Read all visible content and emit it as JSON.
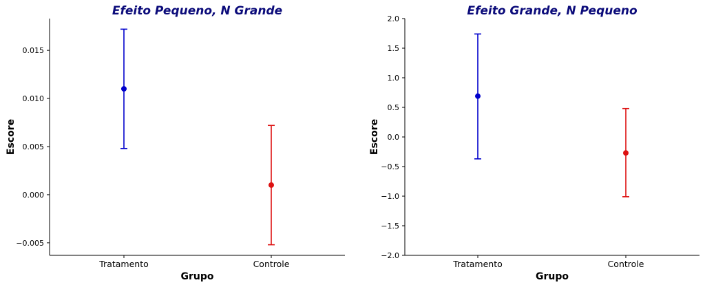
{
  "chart_data": [
    {
      "type": "errorbar",
      "title": "Efeito Pequeno, N Grande",
      "title_color": "#0b0b7a",
      "xlabel": "Grupo",
      "ylabel": "Escore",
      "categories": [
        "Tratamento",
        "Controle"
      ],
      "ylim": [
        -0.0063,
        0.0183
      ],
      "yticks": [
        -0.005,
        0.0,
        0.005,
        0.01,
        0.015
      ],
      "ytick_labels": [
        "−0.005",
        "0.000",
        "0.005",
        "0.010",
        "0.015"
      ],
      "grid": false,
      "series": [
        {
          "category": "Tratamento",
          "mean": 0.011,
          "lower": 0.0048,
          "upper": 0.0172,
          "color": "#0000cc"
        },
        {
          "category": "Controle",
          "mean": 0.001,
          "lower": -0.0052,
          "upper": 0.0072,
          "color": "#dd1111"
        }
      ]
    },
    {
      "type": "errorbar",
      "title": "Efeito Grande, N Pequeno",
      "title_color": "#0b0b7a",
      "xlabel": "Grupo",
      "ylabel": "Escore",
      "categories": [
        "Tratamento",
        "Controle"
      ],
      "ylim": [
        -2.0,
        2.0
      ],
      "yticks": [
        -2.0,
        -1.5,
        -1.0,
        -0.5,
        0.0,
        0.5,
        1.0,
        1.5,
        2.0
      ],
      "ytick_labels": [
        "−2.0",
        "−1.5",
        "−1.0",
        "−0.5",
        "0.0",
        "0.5",
        "1.0",
        "1.5",
        "2.0"
      ],
      "grid": false,
      "series": [
        {
          "category": "Tratamento",
          "mean": 0.69,
          "lower": -0.37,
          "upper": 1.74,
          "color": "#0000cc"
        },
        {
          "category": "Controle",
          "mean": -0.27,
          "lower": -1.01,
          "upper": 0.48,
          "color": "#dd1111"
        }
      ]
    }
  ]
}
